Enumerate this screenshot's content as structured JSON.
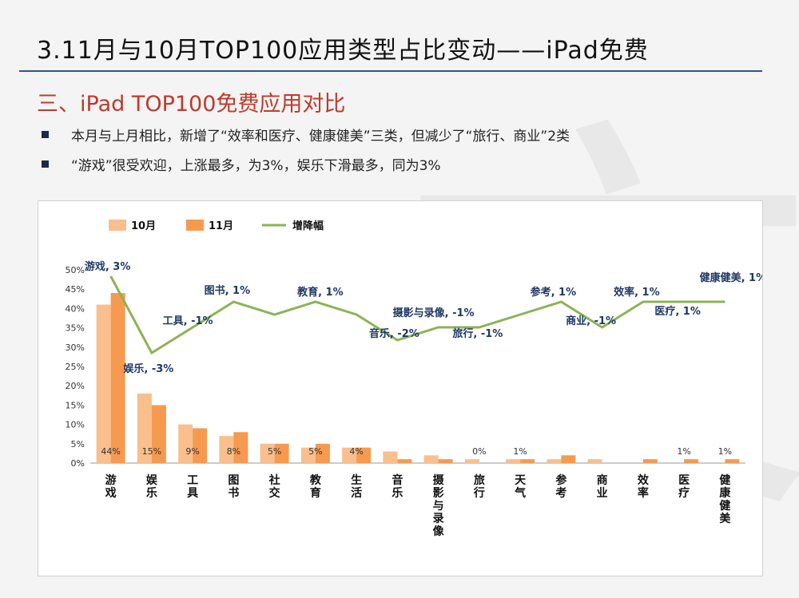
{
  "slide": {
    "title": "3.11月与10月TOP100应用类型占比变动——iPad免费",
    "section": "三、iPad TOP100免费应用对比",
    "bullets": [
      "本月与上月相比，新增了“效率和医疗、健康健美”三类，但减少了“旅行、商业”2类",
      "“游戏”很受欢迎，上涨最多，为3%，娱乐下滑最多，同为3%"
    ]
  },
  "colors": {
    "oct": "#f9bf8c",
    "nov": "#f59a4f",
    "change": "#8db356",
    "label": "#1f3864",
    "accent": "#c0392b"
  },
  "chart_data": {
    "type": "bar",
    "categories": [
      "游戏",
      "娱乐",
      "工具",
      "图书",
      "社交",
      "教育",
      "生活",
      "音乐",
      "摄影与录像",
      "旅行",
      "天气",
      "参考",
      "商业",
      "效率",
      "医疗",
      "健康健美"
    ],
    "series": [
      {
        "name": "10月",
        "values": [
          41,
          18,
          10,
          7,
          5,
          4,
          4,
          3,
          2,
          1,
          1,
          1,
          1,
          0,
          0,
          0
        ]
      },
      {
        "name": "11月",
        "values": [
          44,
          15,
          9,
          8,
          5,
          5,
          4,
          1,
          1,
          0,
          1,
          2,
          0,
          1,
          1,
          1
        ]
      }
    ],
    "line_series": {
      "name": "增降幅",
      "values": [
        3,
        -3,
        -1,
        1,
        0,
        1,
        0,
        -2,
        -1,
        -1,
        0,
        1,
        -1,
        1,
        1,
        1
      ]
    },
    "bar_labels": [
      "44%",
      "15%",
      "9%",
      "8%",
      "5%",
      "5%",
      "4%",
      "",
      "",
      "0%",
      "1%",
      "",
      "",
      "",
      "1%",
      "1%"
    ],
    "line_labels": [
      "游戏, 3%",
      "娱乐, -3%",
      "工具, -1%",
      "图书, 1%",
      "",
      "教育, 1%",
      "",
      "音乐, -2%",
      "摄影与录像, -1%",
      "旅行, -1%",
      "",
      "参考, 1%",
      "商业, -1%",
      "效率, 1%",
      "医疗, 1%",
      "健康健美, 1%"
    ],
    "yticks": [
      "0%",
      "5%",
      "10%",
      "15%",
      "20%",
      "25%",
      "30%",
      "35%",
      "40%",
      "45%",
      "50%"
    ],
    "ylim": [
      0,
      50
    ],
    "legend_position": "top-left",
    "grid": false
  }
}
